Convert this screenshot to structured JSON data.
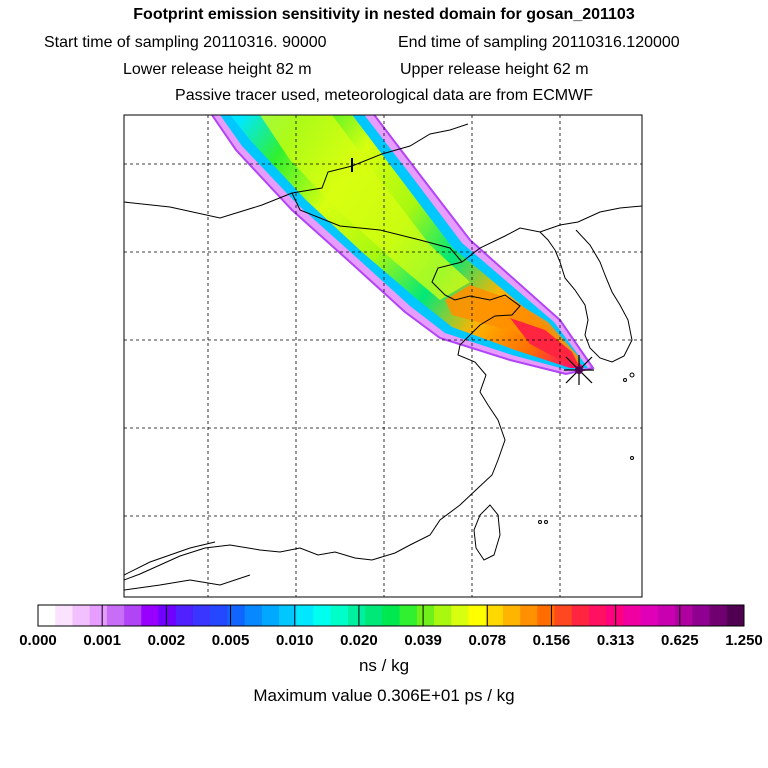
{
  "header": {
    "title": "Footprint emission sensitivity in nested domain for gosan_201103",
    "start_label": "Start time of sampling 20110316. 90000",
    "end_label": "End time of sampling 20110316.120000",
    "lower_label": "Lower release height   82 m",
    "upper_label": "Upper release height   62 m",
    "tracer_label": "Passive tracer used, meteorological data are from ECMWF"
  },
  "legend": {
    "units": "ns / kg",
    "max_value": "Maximum value  0.306E+01 ps / kg",
    "tick_labels": [
      "0.000",
      "0.001",
      "0.002",
      "0.005",
      "0.010",
      "0.020",
      "0.039",
      "0.078",
      "0.156",
      "0.313",
      "0.625",
      "1.250"
    ],
    "colors": [
      "#ffffff",
      "#fbe2ff",
      "#f3c0ff",
      "#e79cff",
      "#c86ef6",
      "#b244f8",
      "#9800ff",
      "#7000ff",
      "#5020ff",
      "#3a36ff",
      "#2448ff",
      "#1064ff",
      "#0888ff",
      "#00a8ff",
      "#00c8ff",
      "#00e8ff",
      "#00ffee",
      "#00ffc8",
      "#00f0a0",
      "#00e878",
      "#00e850",
      "#30f030",
      "#70f018",
      "#a8f810",
      "#d8ff10",
      "#ffff00",
      "#ffd800",
      "#ffb400",
      "#ff9000",
      "#ff6c00",
      "#ff4820",
      "#ff2440",
      "#ff1060",
      "#ff0080",
      "#f000a0",
      "#e000b8",
      "#c800b0",
      "#b000a0",
      "#900090",
      "#700070",
      "#500050"
    ]
  },
  "map": {
    "receptor_marker": "star-marker-gosan"
  }
}
